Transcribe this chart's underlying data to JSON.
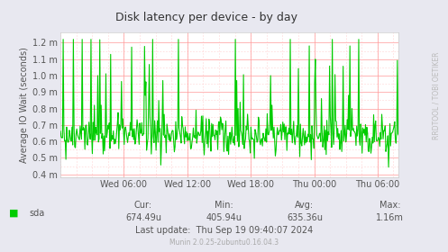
{
  "title": "Disk latency per device - by day",
  "ylabel": "Average IO Wait (seconds)",
  "right_label": "RRDTOOL / TOBI OETIKER",
  "footer": "Munin 2.0.25-2ubuntu0.16.04.3",
  "legend_label": "sda",
  "cur": "674.49u",
  "min": "405.94u",
  "avg": "635.36u",
  "max": "1.16m",
  "last_update": "Thu Sep 19 09:40:07 2024",
  "line_color": "#00cc00",
  "legend_color": "#00cc00",
  "bg_color": "#e8e8f0",
  "plot_bg_color": "#ffffff",
  "grid_major_color": "#ff9999",
  "grid_minor_color": "#ffcccc",
  "title_color": "#333333",
  "axis_label_color": "#555555",
  "tick_color": "#555555",
  "right_label_color": "#bbbbbb",
  "footer_color": "#aaaaaa",
  "ylim": [
    0.38,
    1.26
  ],
  "yticks": [
    0.4,
    0.5,
    0.6,
    0.7,
    0.8,
    0.9,
    1.0,
    1.1,
    1.2
  ],
  "ytick_labels": [
    "0.4 m",
    "0.5 m",
    "0.6 m",
    "0.7 m",
    "0.8 m",
    "0.9 m",
    "1.0 m",
    "1.1 m",
    "1.2 m"
  ],
  "xtick_labels": [
    "Wed 06:00",
    "Wed 12:00",
    "Wed 18:00",
    "Thu 00:00",
    "Thu 06:00"
  ],
  "num_points": 500,
  "seed": 42,
  "base_value": 0.635,
  "spike_probability": 0.055,
  "spike_multiplier": 1.55,
  "noise_scale": 0.055
}
